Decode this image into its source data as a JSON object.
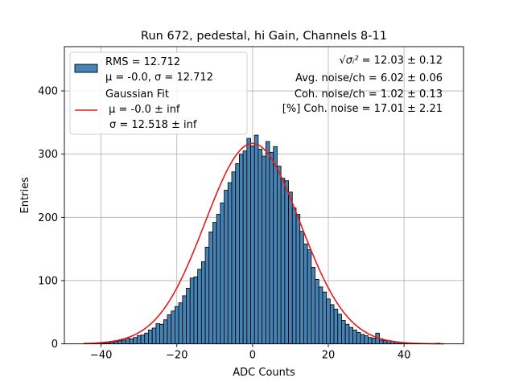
{
  "chart_data": {
    "type": "bar",
    "title": "Run 672, pedestal, hi Gain, Channels 8-11",
    "xlabel": "ADC Counts",
    "ylabel": "Entries",
    "xlim": [
      -49.7,
      55.7
    ],
    "ylim": [
      0,
      470
    ],
    "xticks": [
      -40,
      -20,
      0,
      20,
      40
    ],
    "xtick_labels": [
      "−40",
      "−20",
      "0",
      "20",
      "40"
    ],
    "yticks": [
      0,
      100,
      200,
      300,
      400
    ],
    "ytick_labels": [
      "0",
      "100",
      "200",
      "300",
      "400"
    ],
    "grid": true,
    "histogram": {
      "name": "RMS = 12.712",
      "stats_label": "μ = -0.0, σ = 12.712",
      "color": "#4682b4",
      "edgecolor": "#000000",
      "bin_width": 1,
      "bin_start": -44.5,
      "counts": [
        1,
        0,
        0,
        0,
        1,
        1,
        2,
        3,
        4,
        5,
        6,
        9,
        8,
        10,
        13,
        14,
        17,
        22,
        25,
        32,
        31,
        38,
        46,
        52,
        59,
        65,
        76,
        88,
        104,
        106,
        118,
        130,
        153,
        177,
        192,
        205,
        223,
        243,
        255,
        272,
        285,
        300,
        305,
        325,
        313,
        330,
        308,
        297,
        320,
        303,
        312,
        281,
        262,
        258,
        240,
        215,
        205,
        178,
        158,
        149,
        121,
        102,
        90,
        82,
        71,
        62,
        55,
        47,
        37,
        31,
        26,
        22,
        18,
        15,
        13,
        10,
        9,
        17,
        6,
        5,
        5,
        4,
        3,
        2,
        2,
        1,
        1,
        1,
        1,
        0,
        0,
        0,
        0,
        1,
        0,
        0
      ]
    },
    "fit": {
      "name": "Gaussian Fit",
      "mu_label": " μ = -0.0 ± inf",
      "sigma_label": "σ = 12.518 ± inf",
      "color": "#e41a1c",
      "amplitude": 317,
      "mu": 0.0,
      "sigma": 12.518,
      "x_range": [
        -44.5,
        50.5
      ]
    },
    "annotations": {
      "sigma_sum_label": "√σᵢ²",
      "sigma_sum_value": " = 12.03 ± 0.12",
      "avg_noise": "Avg. noise/ch = 6.02 ± 0.06",
      "coh_noise": "Coh. noise/ch = 1.02 ± 0.13",
      "coh_noise_pct": "[%] Coh. noise = 17.01 ± 2.21"
    },
    "legend_location": "upper left"
  }
}
